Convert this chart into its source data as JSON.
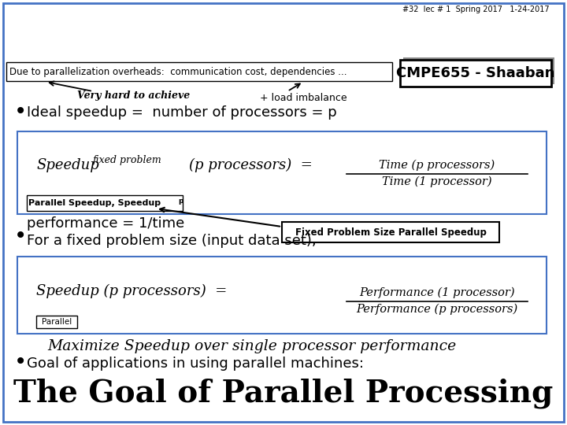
{
  "title": "The Goal of Parallel Processing",
  "bg_color": "#ffffff",
  "bullet1": "Goal of applications in using parallel machines:",
  "bullet1_sub": "Maximize Speedup over single processor performance",
  "box1_label": "Parallel",
  "box1_formula_left": "Speedup (p processors)  =",
  "box1_formula_num": "Performance (p processors)",
  "box1_formula_den": "Performance (1 processor)",
  "bullet2_line1": "For a fixed problem size (input data set),",
  "bullet2_line2": "performance = 1/time",
  "callout_box": "Fixed Problem Size Parallel Speedup",
  "inner_label": "Parallel Speedup, Speedup",
  "inner_label_sub": "p",
  "box2_formula_left": "Speedup",
  "box2_formula_sub": "fixed problem",
  "box2_formula_right": "(p processors)  =",
  "box2_formula_num": "Time (1 processor)",
  "box2_formula_den": "Time (p processors)",
  "bullet3": "Ideal speedup =  number of processors = p",
  "arrow_label1": "Very hard to achieve",
  "arrow_label2": "+ load imbalance",
  "bottom_box": "Due to parallelization overheads:  communication cost, dependencies ...",
  "cmpe_box": "CMPE655 - Shaaban",
  "footer": "#32  lec # 1  Spring 2017   1-24-2017",
  "slide_border_color": "#4472c4",
  "box_border_color": "#4472c4"
}
